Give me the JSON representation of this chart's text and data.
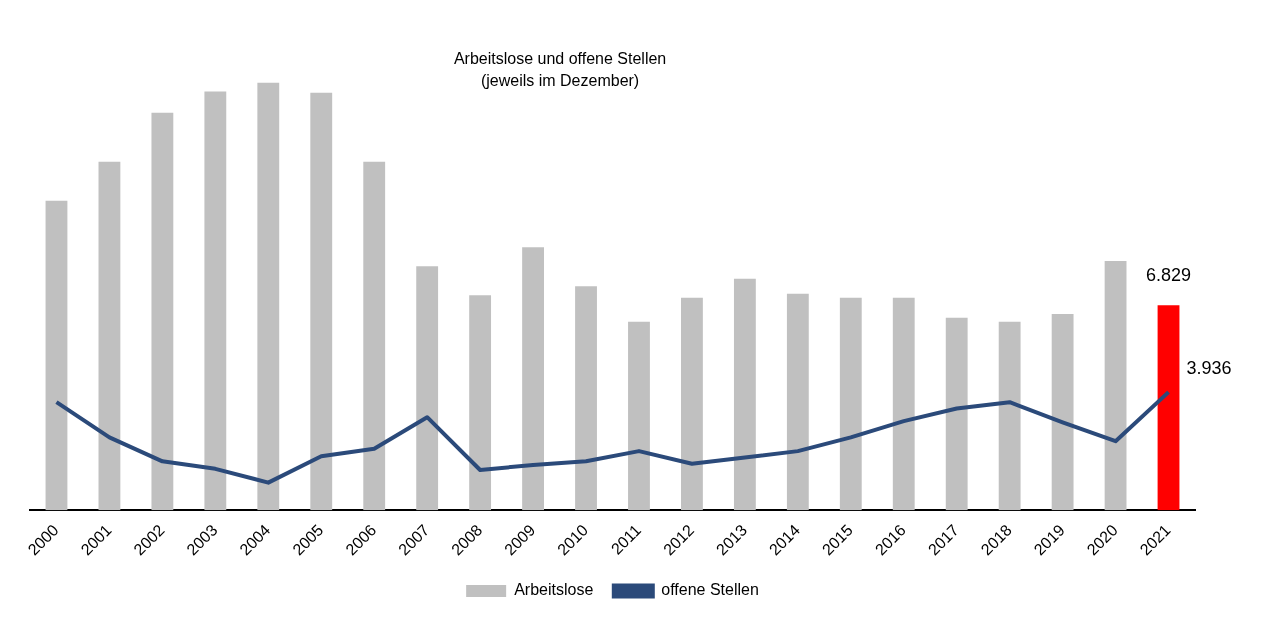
{
  "chart_data": {
    "type": "bar",
    "title": "Arbeitslose und offene Stellen",
    "subtitle": "(jeweils im Dezember)",
    "categories": [
      "2000",
      "2001",
      "2002",
      "2003",
      "2004",
      "2005",
      "2006",
      "2007",
      "2008",
      "2009",
      "2010",
      "2011",
      "2012",
      "2013",
      "2014",
      "2015",
      "2016",
      "2017",
      "2018",
      "2019",
      "2020",
      "2021"
    ],
    "series": [
      {
        "name": "Arbeitslose",
        "color": "#c0c0c0",
        "colors": [
          "#c0c0c0",
          "#c0c0c0",
          "#c0c0c0",
          "#c0c0c0",
          "#c0c0c0",
          "#c0c0c0",
          "#c0c0c0",
          "#c0c0c0",
          "#c0c0c0",
          "#c0c0c0",
          "#c0c0c0",
          "#c0c0c0",
          "#c0c0c0",
          "#c0c0c0",
          "#c0c0c0",
          "#c0c0c0",
          "#c0c0c0",
          "#c0c0c0",
          "#c0c0c0",
          "#c0c0c0",
          "#c0c0c0",
          "#ff0000"
        ],
        "values": [
          10.31,
          11.61,
          13.24,
          13.95,
          14.24,
          13.91,
          11.61,
          8.13,
          7.16,
          8.76,
          7.46,
          6.28,
          7.08,
          7.71,
          7.21,
          7.08,
          7.08,
          6.41,
          6.28,
          6.54,
          8.3,
          6.829
        ],
        "value_labels": [
          null,
          null,
          null,
          null,
          null,
          null,
          null,
          null,
          null,
          null,
          null,
          null,
          null,
          null,
          null,
          null,
          null,
          null,
          null,
          null,
          null,
          "6.829"
        ]
      },
      {
        "name": "offene Stellen",
        "type": "line",
        "color": "#2b4a7a",
        "values": [
          3.6,
          2.43,
          1.63,
          1.38,
          0.92,
          1.8,
          2.05,
          3.1,
          1.34,
          1.51,
          1.63,
          1.97,
          1.55,
          1.76,
          1.97,
          2.43,
          2.97,
          3.39,
          3.6,
          2.93,
          2.3,
          3.936
        ],
        "value_labels": [
          null,
          null,
          null,
          null,
          null,
          null,
          null,
          null,
          null,
          null,
          null,
          null,
          null,
          null,
          null,
          null,
          null,
          null,
          null,
          null,
          null,
          "3.936"
        ]
      }
    ],
    "legend": "bottom",
    "marker": "none",
    "grid": false
  }
}
